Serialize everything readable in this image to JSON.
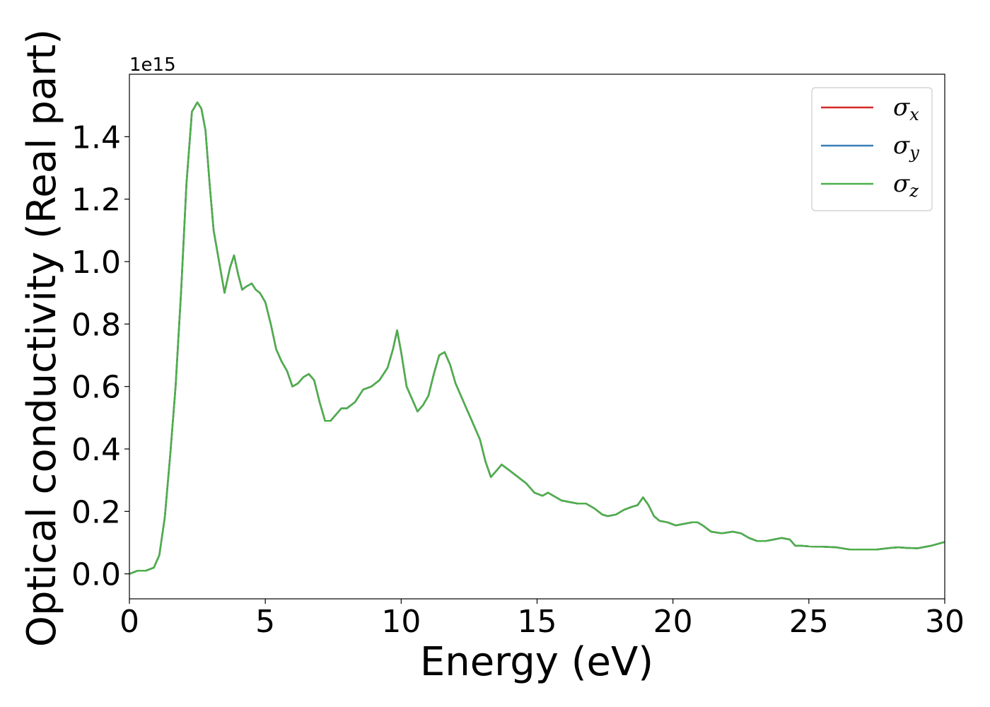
{
  "chart_data": {
    "type": "line",
    "xlabel": "Energy (eV)",
    "ylabel": "Optical conductivity (Real part)",
    "y_offset_text": "1e15",
    "xlim": [
      0,
      30
    ],
    "ylim": [
      -0.08,
      1.6
    ],
    "x_ticks": [
      0,
      5,
      10,
      15,
      20,
      25,
      30
    ],
    "x_tick_labels": [
      "0",
      "5",
      "10",
      "15",
      "20",
      "25",
      "30"
    ],
    "y_ticks": [
      0.0,
      0.2,
      0.4,
      0.6,
      0.8,
      1.0,
      1.2,
      1.4
    ],
    "y_tick_labels": [
      "0.0",
      "0.2",
      "0.4",
      "0.6",
      "0.8",
      "1.0",
      "1.2",
      "1.4"
    ],
    "grid": false,
    "legend_position": "top-right",
    "x": [
      0,
      0.3,
      0.6,
      0.9,
      1.1,
      1.3,
      1.5,
      1.7,
      1.9,
      2.1,
      2.3,
      2.5,
      2.65,
      2.8,
      2.95,
      3.1,
      3.3,
      3.5,
      3.7,
      3.85,
      4.0,
      4.15,
      4.3,
      4.5,
      4.65,
      4.8,
      5.0,
      5.2,
      5.4,
      5.6,
      5.8,
      6.0,
      6.2,
      6.4,
      6.6,
      6.8,
      7.0,
      7.2,
      7.4,
      7.6,
      7.8,
      8.0,
      8.3,
      8.6,
      8.9,
      9.2,
      9.5,
      9.7,
      9.85,
      10.0,
      10.2,
      10.4,
      10.6,
      10.8,
      11.0,
      11.2,
      11.4,
      11.6,
      11.8,
      12.0,
      12.3,
      12.6,
      12.9,
      13.1,
      13.3,
      13.5,
      13.7,
      14.0,
      14.3,
      14.6,
      14.9,
      15.2,
      15.4,
      15.6,
      15.9,
      16.2,
      16.5,
      16.8,
      17.1,
      17.4,
      17.6,
      17.9,
      18.2,
      18.5,
      18.7,
      18.9,
      19.1,
      19.3,
      19.5,
      19.8,
      20.1,
      20.4,
      20.7,
      20.9,
      21.1,
      21.4,
      21.8,
      22.2,
      22.5,
      22.8,
      23.1,
      23.4,
      23.7,
      24.0,
      24.3,
      24.5,
      24.7,
      25.0,
      25.5,
      26.0,
      26.5,
      27.0,
      27.5,
      28.0,
      28.3,
      28.6,
      29.0,
      29.5,
      30.0
    ],
    "series": [
      {
        "name": "σx",
        "color": "#d62728",
        "values": [
          0.0,
          0.01,
          0.01,
          0.02,
          0.06,
          0.18,
          0.38,
          0.6,
          0.9,
          1.25,
          1.48,
          1.51,
          1.49,
          1.42,
          1.25,
          1.1,
          1.0,
          0.9,
          0.98,
          1.02,
          0.96,
          0.91,
          0.92,
          0.93,
          0.91,
          0.9,
          0.87,
          0.8,
          0.72,
          0.68,
          0.65,
          0.6,
          0.61,
          0.63,
          0.64,
          0.62,
          0.55,
          0.49,
          0.49,
          0.51,
          0.53,
          0.53,
          0.55,
          0.59,
          0.6,
          0.62,
          0.66,
          0.72,
          0.78,
          0.71,
          0.6,
          0.56,
          0.52,
          0.54,
          0.57,
          0.64,
          0.7,
          0.71,
          0.67,
          0.61,
          0.55,
          0.49,
          0.43,
          0.36,
          0.31,
          0.33,
          0.35,
          0.33,
          0.31,
          0.29,
          0.26,
          0.25,
          0.26,
          0.25,
          0.235,
          0.23,
          0.225,
          0.225,
          0.21,
          0.19,
          0.185,
          0.19,
          0.205,
          0.215,
          0.22,
          0.245,
          0.22,
          0.185,
          0.17,
          0.165,
          0.155,
          0.16,
          0.165,
          0.165,
          0.155,
          0.135,
          0.13,
          0.135,
          0.13,
          0.115,
          0.105,
          0.105,
          0.11,
          0.115,
          0.11,
          0.09,
          0.09,
          0.088,
          0.087,
          0.085,
          0.078,
          0.078,
          0.078,
          0.083,
          0.085,
          0.083,
          0.082,
          0.09,
          0.102
        ]
      },
      {
        "name": "σy",
        "color": "#377eb8",
        "values": [
          0.0,
          0.01,
          0.01,
          0.02,
          0.06,
          0.18,
          0.38,
          0.6,
          0.9,
          1.25,
          1.48,
          1.51,
          1.49,
          1.42,
          1.25,
          1.1,
          1.0,
          0.9,
          0.98,
          1.02,
          0.96,
          0.91,
          0.92,
          0.93,
          0.91,
          0.9,
          0.87,
          0.8,
          0.72,
          0.68,
          0.65,
          0.6,
          0.61,
          0.63,
          0.64,
          0.62,
          0.55,
          0.49,
          0.49,
          0.51,
          0.53,
          0.53,
          0.55,
          0.59,
          0.6,
          0.62,
          0.66,
          0.72,
          0.78,
          0.71,
          0.6,
          0.56,
          0.52,
          0.54,
          0.57,
          0.64,
          0.7,
          0.71,
          0.67,
          0.61,
          0.55,
          0.49,
          0.43,
          0.36,
          0.31,
          0.33,
          0.35,
          0.33,
          0.31,
          0.29,
          0.26,
          0.25,
          0.26,
          0.25,
          0.235,
          0.23,
          0.225,
          0.225,
          0.21,
          0.19,
          0.185,
          0.19,
          0.205,
          0.215,
          0.22,
          0.245,
          0.22,
          0.185,
          0.17,
          0.165,
          0.155,
          0.16,
          0.165,
          0.165,
          0.155,
          0.135,
          0.13,
          0.135,
          0.13,
          0.115,
          0.105,
          0.105,
          0.11,
          0.115,
          0.11,
          0.09,
          0.09,
          0.088,
          0.087,
          0.085,
          0.078,
          0.078,
          0.078,
          0.083,
          0.085,
          0.083,
          0.082,
          0.09,
          0.102
        ]
      },
      {
        "name": "σz",
        "color": "#4daf4a",
        "values": [
          0.0,
          0.01,
          0.01,
          0.02,
          0.06,
          0.18,
          0.38,
          0.6,
          0.9,
          1.25,
          1.48,
          1.51,
          1.49,
          1.42,
          1.25,
          1.1,
          1.0,
          0.9,
          0.98,
          1.02,
          0.96,
          0.91,
          0.92,
          0.93,
          0.91,
          0.9,
          0.87,
          0.8,
          0.72,
          0.68,
          0.65,
          0.6,
          0.61,
          0.63,
          0.64,
          0.62,
          0.55,
          0.49,
          0.49,
          0.51,
          0.53,
          0.53,
          0.55,
          0.59,
          0.6,
          0.62,
          0.66,
          0.72,
          0.78,
          0.71,
          0.6,
          0.56,
          0.52,
          0.54,
          0.57,
          0.64,
          0.7,
          0.71,
          0.67,
          0.61,
          0.55,
          0.49,
          0.43,
          0.36,
          0.31,
          0.33,
          0.35,
          0.33,
          0.31,
          0.29,
          0.26,
          0.25,
          0.26,
          0.25,
          0.235,
          0.23,
          0.225,
          0.225,
          0.21,
          0.19,
          0.185,
          0.19,
          0.205,
          0.215,
          0.22,
          0.245,
          0.22,
          0.185,
          0.17,
          0.165,
          0.155,
          0.16,
          0.165,
          0.165,
          0.155,
          0.135,
          0.13,
          0.135,
          0.13,
          0.115,
          0.105,
          0.105,
          0.11,
          0.115,
          0.11,
          0.09,
          0.09,
          0.088,
          0.087,
          0.085,
          0.078,
          0.078,
          0.078,
          0.083,
          0.085,
          0.083,
          0.082,
          0.09,
          0.102
        ]
      }
    ],
    "legend": [
      {
        "base": "σ",
        "sub": "x",
        "color": "#d62728"
      },
      {
        "base": "σ",
        "sub": "y",
        "color": "#377eb8"
      },
      {
        "base": "σ",
        "sub": "z",
        "color": "#4daf4a"
      }
    ]
  }
}
